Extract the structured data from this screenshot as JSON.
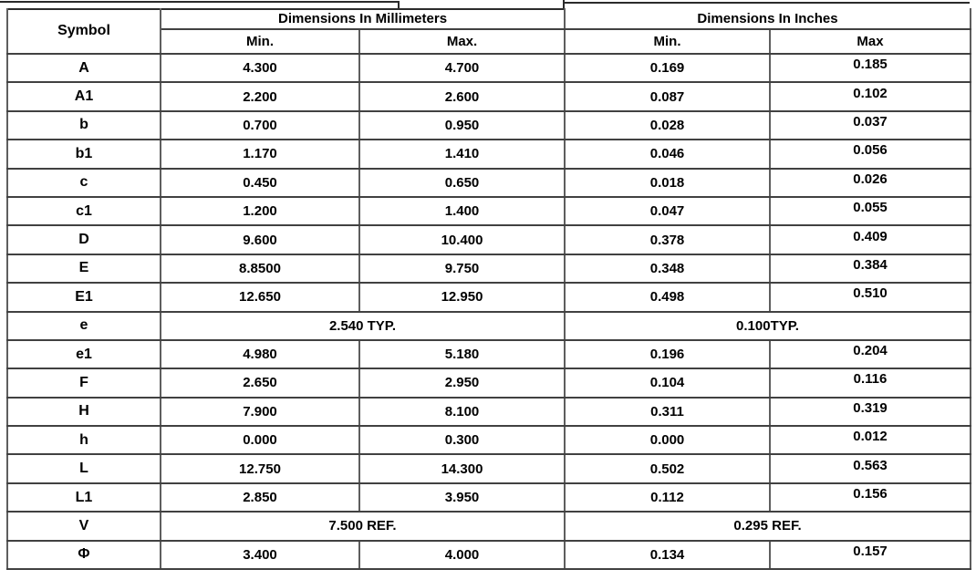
{
  "table": {
    "headers": {
      "symbol": "Symbol",
      "mm_group": "Dimensions In Millimeters",
      "in_group": "Dimensions In Inches",
      "mm_min": "Min.",
      "mm_max": "Max.",
      "in_min": "Min.",
      "in_max": "Max"
    },
    "rows": [
      {
        "symbol": "A",
        "mm_min": "4.300",
        "mm_max": "4.700",
        "in_min": "0.169",
        "in_max": "0.185"
      },
      {
        "symbol": "A1",
        "mm_min": "2.200",
        "mm_max": "2.600",
        "in_min": "0.087",
        "in_max": "0.102"
      },
      {
        "symbol": "b",
        "mm_min": "0.700",
        "mm_max": "0.950",
        "in_min": "0.028",
        "in_max": "0.037"
      },
      {
        "symbol": "b1",
        "mm_min": "1.170",
        "mm_max": "1.410",
        "in_min": "0.046",
        "in_max": "0.056"
      },
      {
        "symbol": "c",
        "mm_min": "0.450",
        "mm_max": "0.650",
        "in_min": "0.018",
        "in_max": "0.026"
      },
      {
        "symbol": "c1",
        "mm_min": "1.200",
        "mm_max": "1.400",
        "in_min": "0.047",
        "in_max": "0.055"
      },
      {
        "symbol": "D",
        "mm_min": "9.600",
        "mm_max": "10.400",
        "in_min": "0.378",
        "in_max": "0.409"
      },
      {
        "symbol": "E",
        "mm_min": "8.8500",
        "mm_max": "9.750",
        "in_min": "0.348",
        "in_max": "0.384"
      },
      {
        "symbol": "E1",
        "mm_min": "12.650",
        "mm_max": "12.950",
        "in_min": "0.498",
        "in_max": "0.510"
      },
      {
        "symbol": "e",
        "mm_span": "2.540 TYP.",
        "in_span": "0.100TYP."
      },
      {
        "symbol": "e1",
        "mm_min": "4.980",
        "mm_max": "5.180",
        "in_min": "0.196",
        "in_max": "0.204"
      },
      {
        "symbol": "F",
        "mm_min": "2.650",
        "mm_max": "2.950",
        "in_min": "0.104",
        "in_max": "0.116"
      },
      {
        "symbol": "H",
        "mm_min": "7.900",
        "mm_max": "8.100",
        "in_min": "0.311",
        "in_max": "0.319"
      },
      {
        "symbol": "h",
        "mm_min": "0.000",
        "mm_max": "0.300",
        "in_min": "0.000",
        "in_max": "0.012"
      },
      {
        "symbol": "L",
        "mm_min": "12.750",
        "mm_max": "14.300",
        "in_min": "0.502",
        "in_max": "0.563"
      },
      {
        "symbol": "L1",
        "mm_min": "2.850",
        "mm_max": "3.950",
        "in_min": "0.112",
        "in_max": "0.156"
      },
      {
        "symbol": "V",
        "mm_span": "7.500 REF.",
        "in_span": "0.295 REF."
      },
      {
        "symbol": "Φ",
        "mm_min": "3.400",
        "mm_max": "4.000",
        "in_min": "0.134",
        "in_max": "0.157"
      }
    ]
  }
}
